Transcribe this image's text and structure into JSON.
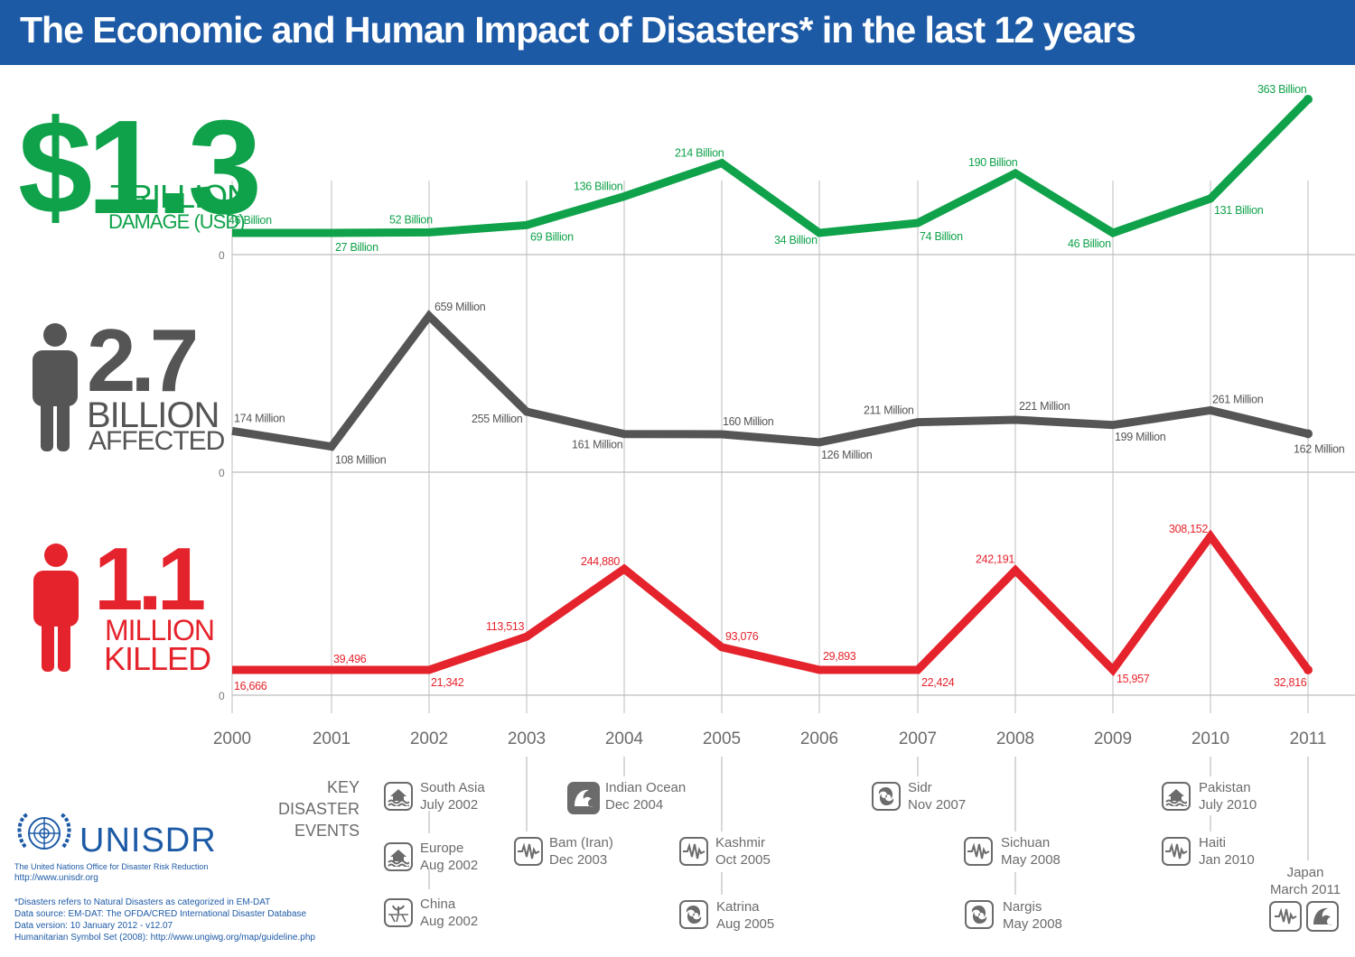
{
  "title": "The Economic and Human Impact of Disasters* in the last 12 years",
  "colors": {
    "header": "#1d5aa6",
    "damage": "#0fa24a",
    "affected": "#555555",
    "killed": "#e5232c",
    "axis": "#bdbdbd",
    "event_text": "#6b6b6b"
  },
  "stats": {
    "damage": {
      "big": "$1.3",
      "unit": "TRILLION",
      "label": "DAMAGE (USD)"
    },
    "affected": {
      "big": "2.7",
      "unit": "BILLION",
      "label": "AFFECTED"
    },
    "killed": {
      "big": "1.1",
      "unit": "MILLION",
      "label": "KILLED"
    }
  },
  "chart_data": {
    "type": "line",
    "x": [
      "2000",
      "2001",
      "2002",
      "2003",
      "2004",
      "2005",
      "2006",
      "2007",
      "2008",
      "2009",
      "2010",
      "2011"
    ],
    "zero_label": "0",
    "grid": true,
    "series": [
      {
        "values": [
          46,
          27,
          52,
          69,
          136,
          214,
          34,
          74,
          190,
          46,
          131,
          363
        ],
        "labels": [
          "46 Billion",
          "27 Billion",
          "52 Billion",
          "69 Billion",
          "136 Billion",
          "214 Billion",
          "34 Billion",
          "74 Billion",
          "190 Billion",
          "46 Billion",
          "131 Billion",
          "363 Billion"
        ]
      },
      {
        "values": [
          174,
          108,
          659,
          255,
          161,
          160,
          126,
          211,
          221,
          199,
          261,
          162
        ],
        "labels": [
          "174 Million",
          "108 Million",
          "659 Million",
          "255 Million",
          "161 Million",
          "160 Million",
          "126 Million",
          "211 Million",
          "221 Million",
          "199 Million",
          "261 Million",
          "162 Million"
        ]
      },
      {
        "values": [
          16666,
          39496,
          21342,
          113513,
          244880,
          93076,
          29893,
          22424,
          242191,
          15957,
          308152,
          32816
        ],
        "labels": [
          "16,666",
          "39,496",
          "21,342",
          "113,513",
          "244,880",
          "93,076",
          "29,893",
          "22,424",
          "242,191",
          "15,957",
          "308,152",
          "32,816"
        ]
      }
    ]
  },
  "key_events_title": [
    "KEY",
    "DISASTER",
    "EVENTS"
  ],
  "events": [
    {
      "name": "South Asia",
      "date": "July 2002",
      "icon": "flood-icon"
    },
    {
      "name": "Europe",
      "date": "Aug 2002",
      "icon": "flood-icon"
    },
    {
      "name": "China",
      "date": "Aug 2002",
      "icon": "drought-icon"
    },
    {
      "name": "Bam (Iran)",
      "date": "Dec 2003",
      "icon": "earthquake-icon"
    },
    {
      "name": "Indian Ocean",
      "date": "Dec 2004",
      "icon": "tsunami-icon"
    },
    {
      "name": "Kashmir",
      "date": "Oct 2005",
      "icon": "earthquake-icon"
    },
    {
      "name": "Katrina",
      "date": "Aug 2005",
      "icon": "cyclone-icon"
    },
    {
      "name": "Sidr",
      "date": "Nov 2007",
      "icon": "cyclone-icon"
    },
    {
      "name": "Sichuan",
      "date": "May 2008",
      "icon": "earthquake-icon"
    },
    {
      "name": "Nargis",
      "date": "May 2008",
      "icon": "cyclone-icon"
    },
    {
      "name": "Pakistan",
      "date": "July 2010",
      "icon": "flood-icon"
    },
    {
      "name": "Haiti",
      "date": "Jan 2010",
      "icon": "earthquake-icon"
    },
    {
      "name": "Japan",
      "date": "March 2011",
      "icon": "earthquake-icon",
      "icon2": "tsunami-icon"
    }
  ],
  "org": {
    "name": "UNISDR",
    "subtitle": "The United Nations Office for Disaster Risk Reduction",
    "url": "http://www.unisdr.org"
  },
  "footnotes": [
    "*Disasters refers to Natural Disasters as categorized in EM-DAT",
    "Data source: EM-DAT: The OFDA/CRED International Disaster Database",
    "Data version: 10 January 2012 - v12.07",
    "Humanitarian Symbol Set (2008): http://www.ungiwg.org/map/guideline.php"
  ]
}
